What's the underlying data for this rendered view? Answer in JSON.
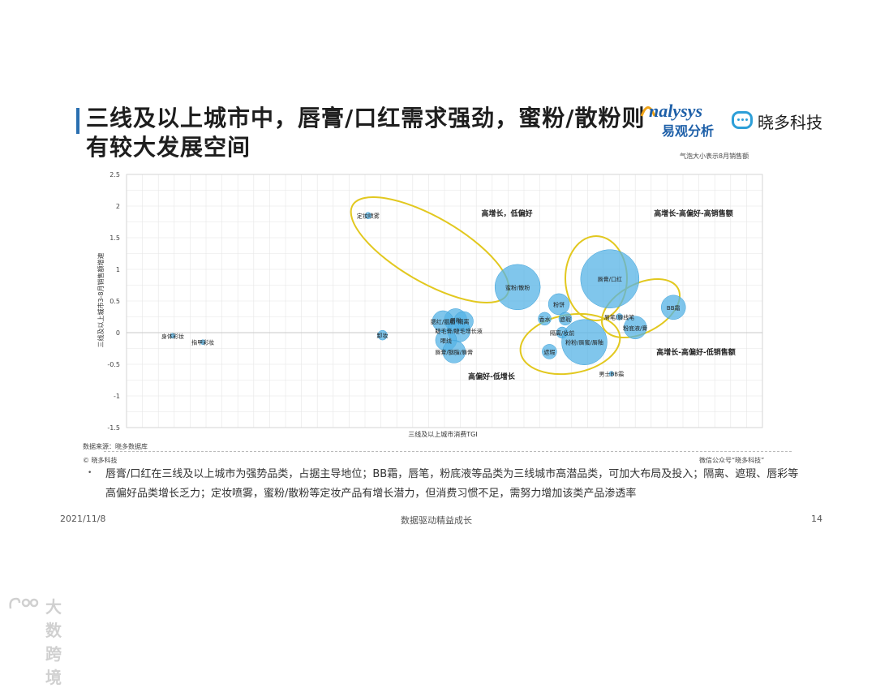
{
  "header": {
    "title_line1": "三线及以上城市中，唇膏/口红需求强劲，蜜粉/散粉则",
    "title_line2": "有较大发展空间",
    "logo_analysys_line1": "nalysys",
    "logo_analysys_line2": "易观分析",
    "logo_xd": "晓多科技",
    "bubble_note": "气泡大小表示8月销售额"
  },
  "chart_data": {
    "type": "scatter",
    "xlabel": "三线及以上城市消费TGI",
    "ylabel": "三线及以上城市3-8月销售额增速",
    "ylim": [
      -1.5,
      2.5
    ],
    "yticks": [
      "2.5",
      "2",
      "1.5",
      "1",
      "0.5",
      "0",
      "-0.5",
      "-1",
      "-1.5"
    ],
    "grid": true,
    "points": [
      {
        "label": "身体彩妆",
        "x": 58,
        "y": -0.05,
        "size": 2
      },
      {
        "label": "指甲彩妆",
        "x": 96,
        "y": -0.15,
        "size": 2
      },
      {
        "label": "定妆喷雾",
        "x": 304,
        "y": 1.85,
        "size": 4
      },
      {
        "label": "卸妆",
        "x": 322,
        "y": -0.04,
        "size": 6
      },
      {
        "label": "眉粉",
        "x": 414,
        "y": 0.2,
        "size": 14
      },
      {
        "label": "腮红/胭脂",
        "x": 398,
        "y": 0.18,
        "size": 13
      },
      {
        "label": "隔离",
        "x": 424,
        "y": 0.18,
        "size": 12
      },
      {
        "label": "睫毛膏/睫毛增长液",
        "x": 418,
        "y": 0.03,
        "size": 14
      },
      {
        "label": "眼线",
        "x": 402,
        "y": -0.12,
        "size": 13
      },
      {
        "label": "唇膏/胭脂/唇膏",
        "x": 412,
        "y": -0.3,
        "size": 14
      },
      {
        "label": "蜜粉/散粉",
        "x": 492,
        "y": 0.72,
        "size": 28
      },
      {
        "label": "粉饼",
        "x": 544,
        "y": 0.45,
        "size": 13
      },
      {
        "label": "香水",
        "x": 526,
        "y": 0.22,
        "size": 8
      },
      {
        "label": "遮瑕",
        "x": 552,
        "y": 0.22,
        "size": 8
      },
      {
        "label": "隔离/妆前",
        "x": 548,
        "y": 0.0,
        "size": 7
      },
      {
        "label": "遮瑕",
        "x": 532,
        "y": -0.3,
        "size": 9
      },
      {
        "label": "粉粉/唇蜜/唇釉",
        "x": 576,
        "y": -0.15,
        "size": 28
      },
      {
        "label": "唇膏/口红",
        "x": 608,
        "y": 0.85,
        "size": 36
      },
      {
        "label": "唇笔/唇线笔",
        "x": 620,
        "y": 0.25,
        "size": 4
      },
      {
        "label": "粉底液/膏",
        "x": 640,
        "y": 0.08,
        "size": 14
      },
      {
        "label": "BB霜",
        "x": 688,
        "y": 0.4,
        "size": 15
      },
      {
        "label": "男士BB霜",
        "x": 610,
        "y": -0.65,
        "size": 3
      }
    ],
    "annotations": [
      "高增长，低偏好",
      "高增长-高偏好-高销售额",
      "高增长-高偏好-低销售额",
      "高偏好-低增长"
    ]
  },
  "footer": {
    "source": "数据来源：晓多数据库",
    "copyright": "© 晓多科技",
    "wechat": "微信公众号“晓多科技”",
    "bullet_symbol": "•",
    "note": "唇膏/口红在三线及以上城市为强势品类，占据主导地位；BB霜，唇笔，粉底液等品类为三线城市高潜品类，可加大布局及投入；隔离、遮瑕、唇彩等高偏好品类增长乏力；定妆喷雾，蜜粉/散粉等定妆产品有增长潜力，但消费习惯不足，需努力增加该类产品渗透率",
    "date": "2021/11/8",
    "slogan": "数据驱动精益成长",
    "page": "14"
  },
  "watermark": {
    "text": "大数跨境"
  },
  "colors": {
    "bubble": "#55b3e6",
    "bubble_edge": "#3a9fd8",
    "ellipse": "#e2c81f",
    "title_accent": "#2a6fb0",
    "brand_blue": "#1d5fa8"
  }
}
